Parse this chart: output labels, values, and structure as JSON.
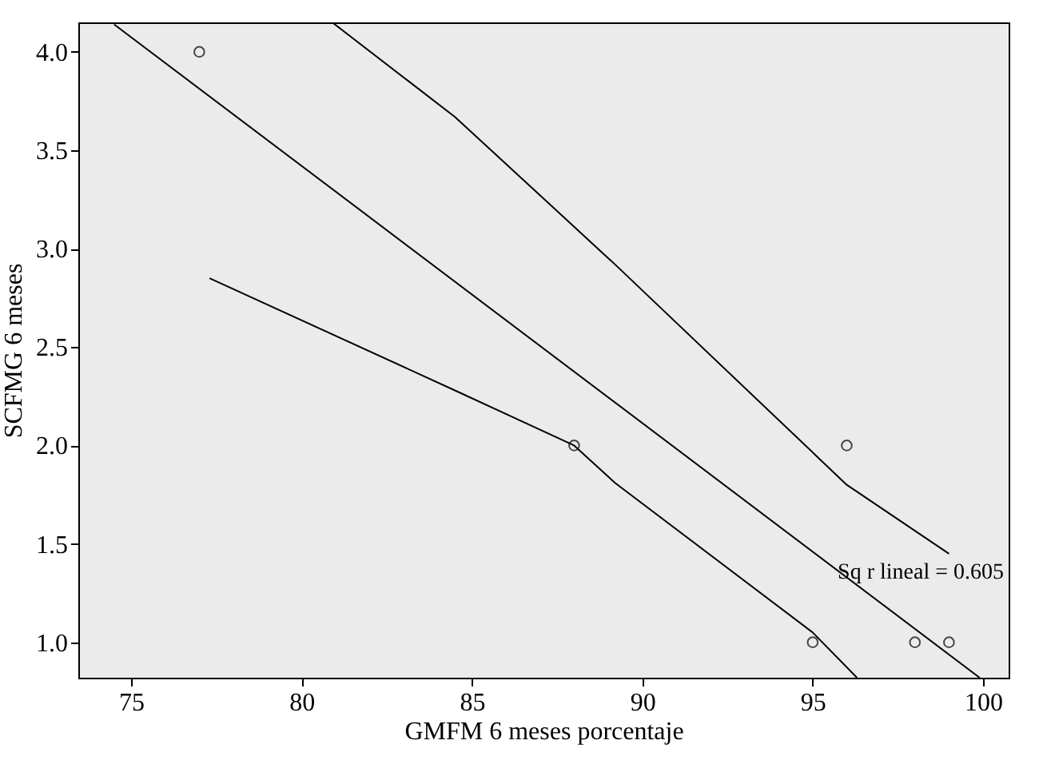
{
  "chart_data": {
    "type": "scatter",
    "xlabel": "GMFM 6 meses porcentaje",
    "ylabel": "SCFMG 6 meses",
    "xlim": [
      73.45,
      100.75
    ],
    "ylim": [
      0.82,
      4.15
    ],
    "xticks": [
      75,
      80,
      85,
      90,
      95,
      100
    ],
    "yticks": [
      {
        "value": 1,
        "label": "1.0"
      },
      1.5,
      {
        "value": 2,
        "label": "2.0"
      },
      2.5,
      {
        "value": 3,
        "label": "3.0"
      },
      3.5,
      {
        "value": 4,
        "label": "4.0"
      }
    ],
    "grid": false,
    "series": [
      {
        "color": "#000000",
        "marker": "circle",
        "x": [
          77,
          88,
          95,
          96,
          98,
          99
        ],
        "values": [
          4,
          2,
          1,
          2,
          1,
          1
        ]
      },
      {
        "type": "line",
        "color": "#000000",
        "line_style": "solid",
        "x": [
          74.5,
          99.9
        ],
        "values": [
          4.14,
          0.82
        ]
      },
      {
        "type": "line",
        "color": "#000000",
        "line_style": "solid",
        "x": [
          77.3,
          84.5,
          88,
          89.2,
          95,
          96.3
        ],
        "values": [
          2.85,
          2.28,
          2.0,
          1.81,
          1.05,
          0.82
        ]
      },
      {
        "type": "line",
        "color": "#000000",
        "line_style": "solid",
        "x": [
          80.9,
          84.5,
          89.2,
          96,
          99
        ],
        "values": [
          4.15,
          3.67,
          2.92,
          1.8,
          1.45
        ]
      }
    ],
    "annotations": [
      "Sq r lineal = 0.605"
    ]
  }
}
